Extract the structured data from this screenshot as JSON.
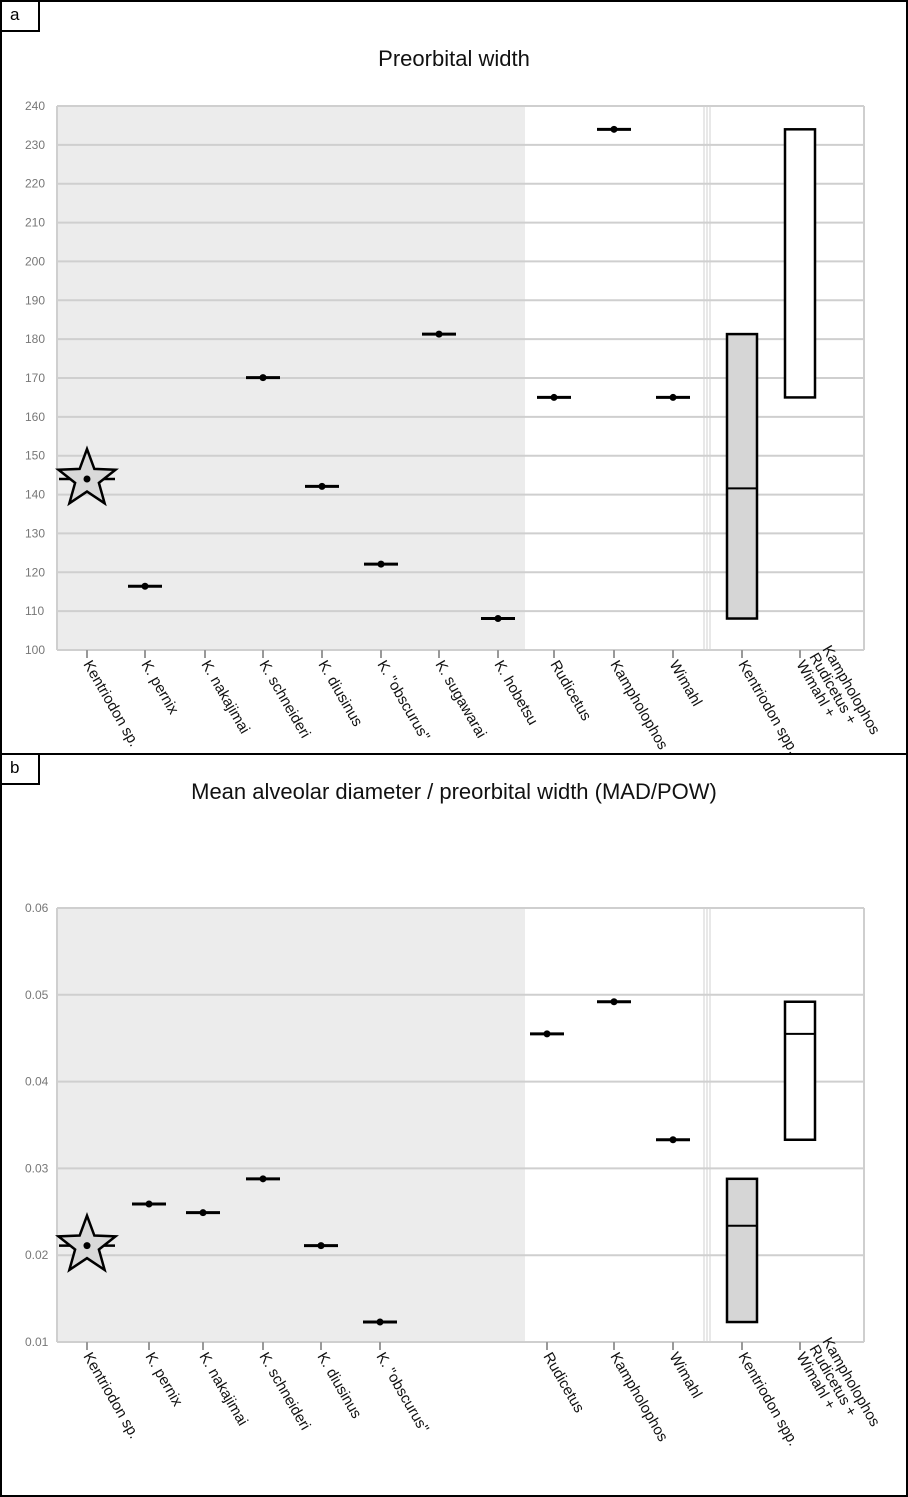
{
  "chart_data": [
    {
      "panel_label": "a",
      "type": "scatter",
      "title": "Preorbital width",
      "xlabel": "",
      "ylabel": "",
      "ylim": [
        100,
        240
      ],
      "yticks": [
        100,
        110,
        120,
        130,
        140,
        150,
        160,
        170,
        180,
        190,
        200,
        210,
        220,
        230,
        240
      ],
      "grid": true,
      "categories": [
        "Kentriodon sp.",
        "K. pernix",
        "K. nakajimai",
        "K. schneideri",
        "K. diusinus",
        "K. \"obscurus\"",
        "K. sugawarai",
        "K. hobetsu",
        "Rudicetus",
        "Kampholophos",
        "Wimahl",
        "Kentriodon spp.",
        "Wimahl + Rudicetus + Kampholophos"
      ],
      "values": [
        144,
        116.4,
        null,
        170.1,
        142.1,
        122.1,
        181.3,
        108.1,
        165,
        234,
        165,
        null,
        null
      ],
      "highlight": {
        "category": "Kentriodon sp.",
        "marker": "star"
      },
      "shaded_groups": [
        "Kentriodon sp.",
        "K. pernix",
        "K. nakajimai",
        "K. schneideri",
        "K. diusinus",
        "K. \"obscurus\"",
        "K. sugawarai",
        "K. hobetsu"
      ],
      "boxes": [
        {
          "category": "Kentriodon spp.",
          "min": 108.1,
          "median": 141.6,
          "max": 181.3,
          "fill": "#d6d6d6"
        },
        {
          "category": "Wimahl + Rudicetus + Kampholophos",
          "min": 165,
          "max": 234,
          "fill": "#ffffff"
        }
      ]
    },
    {
      "panel_label": "b",
      "type": "scatter",
      "title": "Mean alveolar diameter / preorbital width (MAD/POW)",
      "xlabel": "",
      "ylabel": "",
      "ylim": [
        0.01,
        0.06
      ],
      "yticks": [
        0.01,
        0.02,
        0.03,
        0.04,
        0.05,
        0.06
      ],
      "grid": true,
      "categories": [
        "Kentriodon sp.",
        "K. pernix",
        "K. nakajimai",
        "K. schneideri",
        "K. diusinus",
        "K. \"obscurus\"",
        "",
        "",
        "Rudicetus",
        "Kampholophos",
        "Wimahl",
        "Kentriodon spp.",
        "Wimahl + Rudicetus + Kampholophos"
      ],
      "values": [
        0.0211,
        0.0259,
        0.0249,
        0.0288,
        0.0211,
        0.0123,
        null,
        null,
        0.0455,
        0.0492,
        0.0333,
        null,
        null
      ],
      "highlight": {
        "category": "Kentriodon sp.",
        "marker": "star"
      },
      "shaded_groups": [
        "Kentriodon sp.",
        "K. pernix",
        "K. nakajimai",
        "K. schneideri",
        "K. diusinus",
        "K. \"obscurus\""
      ],
      "boxes": [
        {
          "category": "Kentriodon spp.",
          "min": 0.0123,
          "median": 0.0234,
          "max": 0.0288,
          "fill": "#d6d6d6"
        },
        {
          "category": "Wimahl + Rudicetus + Kampholophos",
          "min": 0.0333,
          "median": 0.0455,
          "max": 0.0492,
          "fill": "#ffffff"
        }
      ]
    }
  ]
}
